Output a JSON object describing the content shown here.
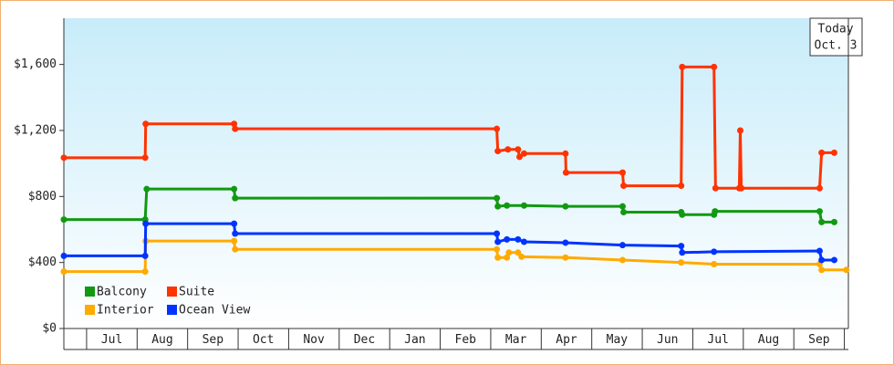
{
  "chart_data": {
    "type": "line",
    "step": false,
    "xlim": [
      -0.45,
      15.08
    ],
    "xticks": [
      {
        "value": 0.5,
        "label": "Jul"
      },
      {
        "value": 1.5,
        "label": "Aug"
      },
      {
        "value": 2.5,
        "label": "Sep"
      },
      {
        "value": 3.5,
        "label": "Oct"
      },
      {
        "value": 4.5,
        "label": "Nov"
      },
      {
        "value": 5.5,
        "label": "Dec"
      },
      {
        "value": 6.5,
        "label": "Jan"
      },
      {
        "value": 7.5,
        "label": "Feb"
      },
      {
        "value": 8.5,
        "label": "Mar"
      },
      {
        "value": 9.5,
        "label": "Apr"
      },
      {
        "value": 10.5,
        "label": "May"
      },
      {
        "value": 11.5,
        "label": "Jun"
      },
      {
        "value": 12.5,
        "label": "Jul"
      },
      {
        "value": 13.5,
        "label": "Aug"
      },
      {
        "value": 14.5,
        "label": "Sep"
      }
    ],
    "ylim": [
      0,
      1880
    ],
    "yticks": [
      {
        "value": 0,
        "label": "$0"
      },
      {
        "value": 400,
        "label": "$400"
      },
      {
        "value": 800,
        "label": "$800"
      },
      {
        "value": 1200,
        "label": "$1,200"
      },
      {
        "value": 1600,
        "label": "$1,600"
      }
    ],
    "annotation": [
      "Today",
      "Oct. 3"
    ],
    "legend": "lower-left",
    "series": [
      {
        "name": "Balcony",
        "color": "#119911",
        "x": [
          -0.45,
          1.16,
          1.19,
          2.92,
          2.94,
          8.12,
          8.14,
          8.32,
          8.66,
          9.48,
          10.61,
          10.63,
          11.77,
          11.79,
          12.42,
          12.44,
          14.51,
          14.55,
          14.8
        ],
        "values": [
          660,
          660,
          845,
          845,
          790,
          790,
          740,
          745,
          745,
          740,
          740,
          705,
          705,
          690,
          690,
          710,
          710,
          645,
          645
        ]
      },
      {
        "name": "Suite",
        "color": "#ff3300",
        "x": [
          -0.45,
          1.16,
          1.17,
          2.92,
          2.94,
          8.12,
          8.14,
          8.34,
          8.54,
          8.57,
          8.66,
          9.48,
          9.49,
          10.61,
          10.63,
          11.77,
          11.79,
          12.42,
          12.45,
          12.92,
          12.94,
          12.96,
          14.51,
          14.55,
          14.8
        ],
        "values": [
          1035,
          1035,
          1240,
          1240,
          1210,
          1210,
          1075,
          1085,
          1085,
          1040,
          1060,
          1060,
          945,
          945,
          865,
          865,
          1585,
          1585,
          850,
          850,
          1200,
          850,
          850,
          1065,
          1065
        ]
      },
      {
        "name": "Interior",
        "color": "#ffaa00",
        "x": [
          -0.45,
          1.16,
          1.17,
          2.92,
          2.94,
          8.12,
          8.14,
          8.32,
          8.36,
          8.54,
          8.61,
          9.48,
          10.61,
          11.77,
          12.42,
          14.51,
          14.55,
          15.04
        ],
        "values": [
          345,
          345,
          530,
          530,
          480,
          480,
          430,
          430,
          460,
          460,
          435,
          430,
          415,
          400,
          390,
          390,
          355,
          355
        ]
      },
      {
        "name": "Ocean View",
        "color": "#0033ff",
        "x": [
          -0.45,
          1.16,
          1.17,
          2.92,
          2.94,
          8.12,
          8.14,
          8.32,
          8.54,
          8.66,
          9.48,
          10.61,
          11.77,
          11.79,
          12.42,
          14.51,
          14.55,
          14.8
        ],
        "values": [
          440,
          440,
          635,
          635,
          575,
          575,
          525,
          540,
          540,
          525,
          520,
          505,
          500,
          460,
          465,
          470,
          415,
          415
        ]
      }
    ]
  }
}
